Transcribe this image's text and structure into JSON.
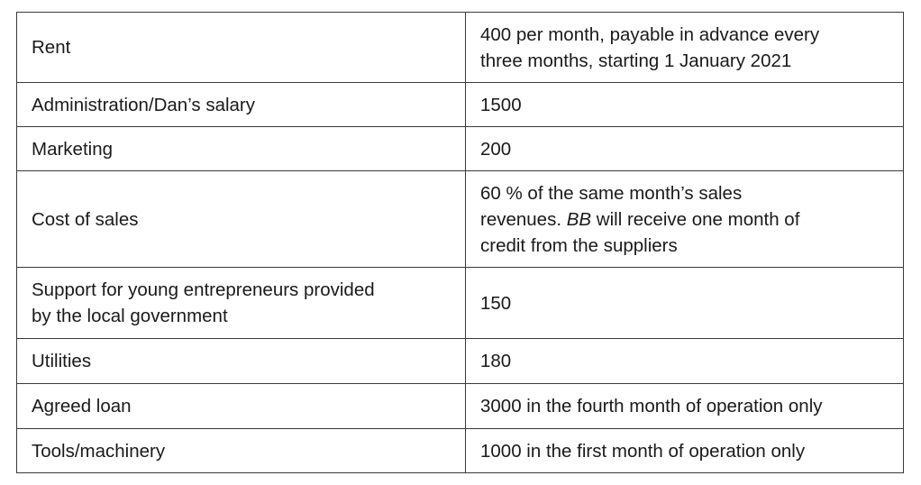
{
  "table": {
    "rows": [
      {
        "item": [
          "Rent"
        ],
        "value": [
          "400 per month, payable in advance every",
          "three months, starting 1 January 2021"
        ]
      },
      {
        "item": [
          "Administration/Dan’s salary"
        ],
        "value": [
          "1500"
        ]
      },
      {
        "item": [
          "Marketing"
        ],
        "value": [
          "200"
        ]
      },
      {
        "item": [
          "Cost of sales"
        ],
        "value": [
          "60 % of the same month’s sales"
        ],
        "value_pre": "revenues. ",
        "value_em": "BB",
        "value_post": " will receive one month of",
        "value_last": "credit from the suppliers"
      },
      {
        "item": [
          "Support for young entrepreneurs provided",
          "by the local government"
        ],
        "value": [
          "150"
        ]
      },
      {
        "item": [
          "Utilities"
        ],
        "value": [
          "180"
        ]
      },
      {
        "item": [
          "Agreed loan"
        ],
        "value": [
          "3000 in the fourth month of operation only"
        ]
      },
      {
        "item": [
          "Tools/machinery"
        ],
        "value": [
          "1000 in the first month of operation only"
        ]
      }
    ]
  }
}
